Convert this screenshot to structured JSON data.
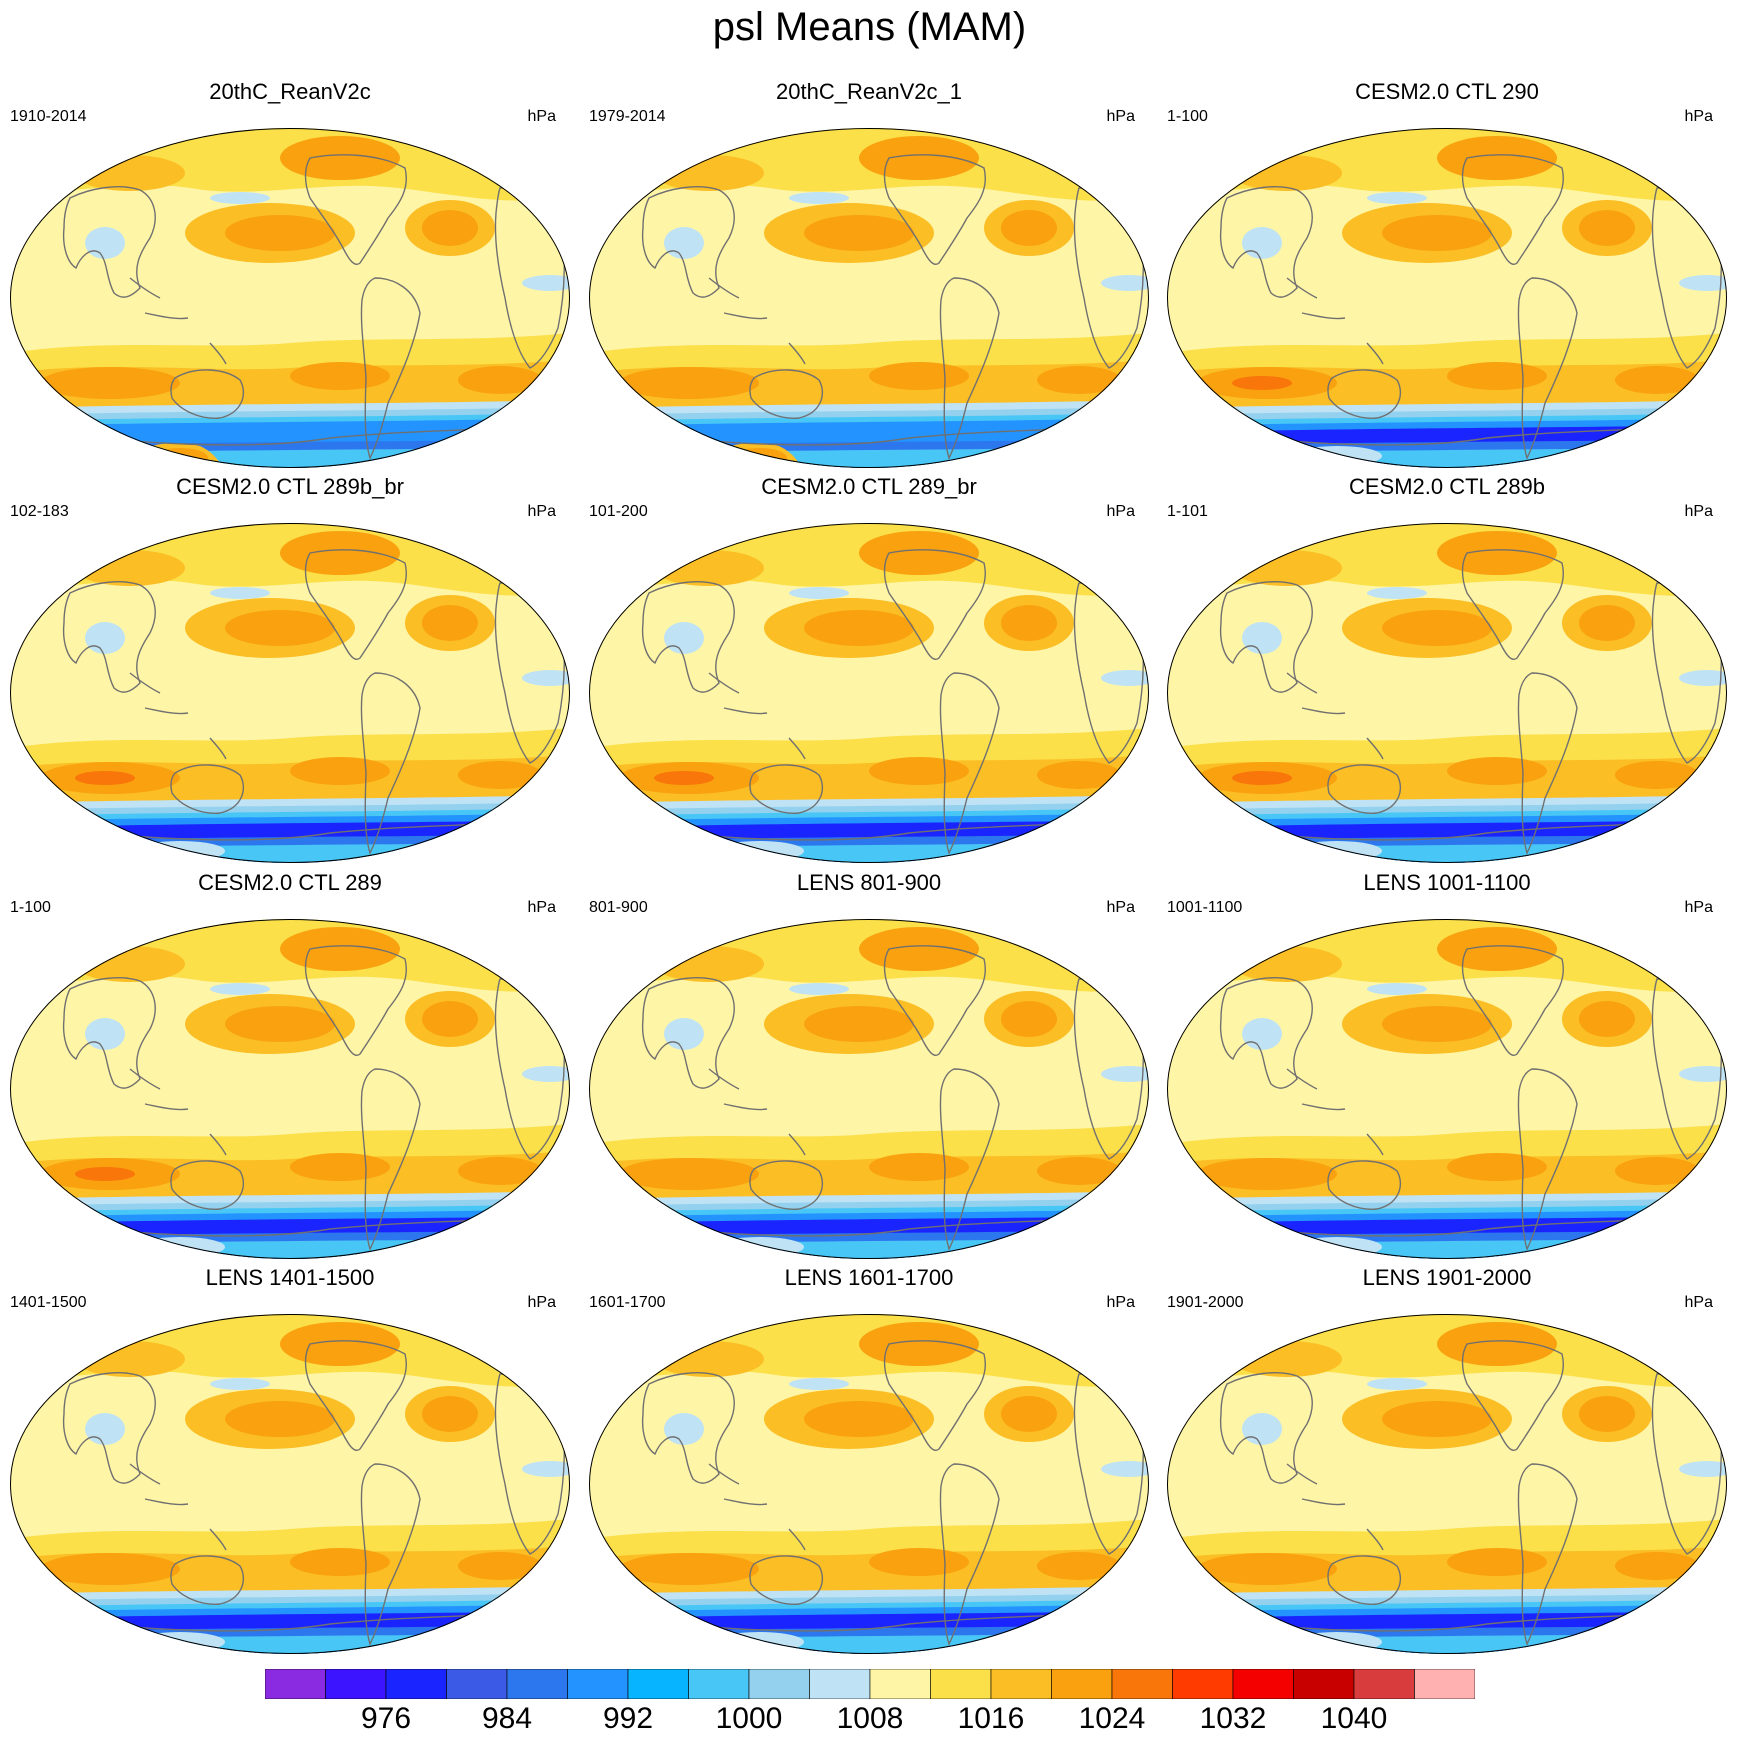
{
  "figure": {
    "title": "psl Means (MAM)"
  },
  "panels": [
    {
      "title": "20thC_ReanV2c",
      "years": "1910-2014",
      "units": "hPa",
      "variant": "reanalysis"
    },
    {
      "title": "20thC_ReanV2c_1",
      "years": "1979-2014",
      "units": "hPa",
      "variant": "reanalysis"
    },
    {
      "title": "CESM2.0 CTL 290",
      "years": "1-100",
      "units": "hPa",
      "variant": "cesm"
    },
    {
      "title": "CESM2.0 CTL 289b_br",
      "years": "102-183",
      "units": "hPa",
      "variant": "cesm"
    },
    {
      "title": "CESM2.0 CTL 289_br",
      "years": "101-200",
      "units": "hPa",
      "variant": "cesm"
    },
    {
      "title": "CESM2.0 CTL 289b",
      "years": "1-101",
      "units": "hPa",
      "variant": "cesm"
    },
    {
      "title": "CESM2.0 CTL 289",
      "years": "1-100",
      "units": "hPa",
      "variant": "cesm"
    },
    {
      "title": "LENS 801-900",
      "years": "801-900",
      "units": "hPa",
      "variant": "lens"
    },
    {
      "title": "LENS 1001-1100",
      "years": "1001-1100",
      "units": "hPa",
      "variant": "lens"
    },
    {
      "title": "LENS 1401-1500",
      "years": "1401-1500",
      "units": "hPa",
      "variant": "lens"
    },
    {
      "title": "LENS 1601-1700",
      "years": "1601-1700",
      "units": "hPa",
      "variant": "lens"
    },
    {
      "title": "LENS 1901-2000",
      "years": "1901-2000",
      "units": "hPa",
      "variant": "lens"
    }
  ],
  "colorbar": {
    "colors": [
      "#8a2be2",
      "#3d14ff",
      "#1a24ff",
      "#3b5be6",
      "#2d77ee",
      "#2393ff",
      "#07b4ff",
      "#48c7f7",
      "#93d1ee",
      "#bfe3f5",
      "#fff5a6",
      "#fbe04a",
      "#fbbe25",
      "#f9a10f",
      "#f9760a",
      "#ff3b00",
      "#f50000",
      "#c80000",
      "#d83c3c",
      "#ffb0b0"
    ],
    "labels": [
      "976",
      "984",
      "992",
      "1000",
      "1008",
      "1016",
      "1024",
      "1032",
      "1040"
    ],
    "label_after_box": [
      1,
      3,
      5,
      7,
      9,
      11,
      13,
      15,
      17
    ]
  }
}
